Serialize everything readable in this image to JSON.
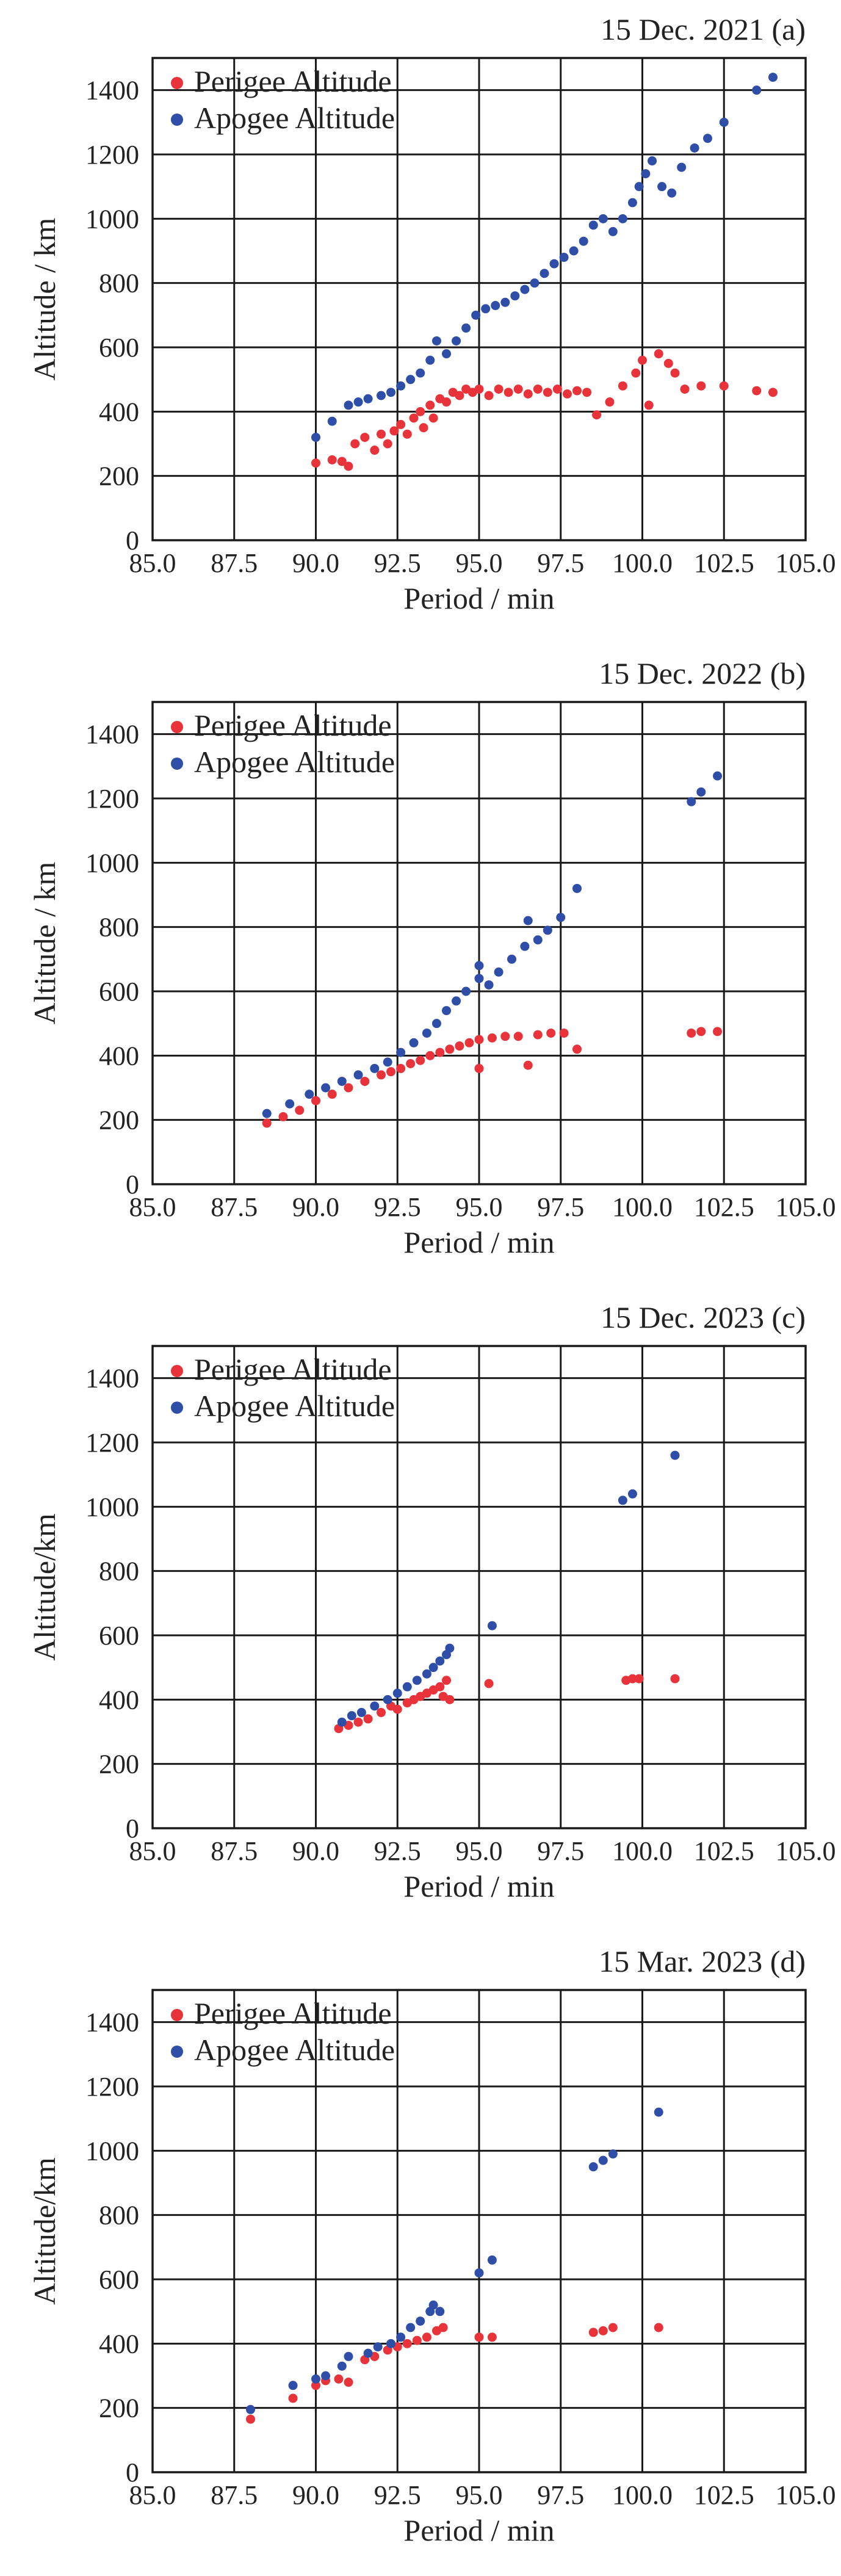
{
  "chart_data": [
    {
      "type": "scatter",
      "title": "15 Dec. 2021 (a)",
      "xlabel": "Period / min",
      "ylabel": "Altitude / km",
      "xlim": [
        85.0,
        105.0
      ],
      "ylim": [
        0,
        1500
      ],
      "xticks": [
        "85.0",
        "87.5",
        "90.0",
        "92.5",
        "95.0",
        "97.5",
        "100.0",
        "102.5",
        "105.0"
      ],
      "yticks": [
        "0",
        "200",
        "400",
        "600",
        "800",
        "1000",
        "1200",
        "1400"
      ],
      "grid": true,
      "legend": "top-left",
      "series": [
        {
          "name": "Perigee Altitude",
          "color": "#e8333b",
          "points": [
            [
              90.0,
              240
            ],
            [
              90.5,
              250
            ],
            [
              90.8,
              245
            ],
            [
              91.0,
              230
            ],
            [
              91.2,
              300
            ],
            [
              91.5,
              320
            ],
            [
              91.8,
              280
            ],
            [
              92.0,
              330
            ],
            [
              92.2,
              300
            ],
            [
              92.4,
              340
            ],
            [
              92.6,
              360
            ],
            [
              92.8,
              330
            ],
            [
              93.0,
              380
            ],
            [
              93.2,
              400
            ],
            [
              93.3,
              350
            ],
            [
              93.5,
              420
            ],
            [
              93.6,
              380
            ],
            [
              93.8,
              440
            ],
            [
              94.0,
              430
            ],
            [
              94.2,
              460
            ],
            [
              94.4,
              450
            ],
            [
              94.6,
              470
            ],
            [
              94.8,
              460
            ],
            [
              95.0,
              470
            ],
            [
              95.3,
              450
            ],
            [
              95.6,
              470
            ],
            [
              95.9,
              460
            ],
            [
              96.2,
              470
            ],
            [
              96.5,
              455
            ],
            [
              96.8,
              470
            ],
            [
              97.1,
              460
            ],
            [
              97.4,
              470
            ],
            [
              97.7,
              455
            ],
            [
              98.0,
              465
            ],
            [
              98.3,
              460
            ],
            [
              98.6,
              390
            ],
            [
              99.0,
              430
            ],
            [
              99.4,
              480
            ],
            [
              99.8,
              520
            ],
            [
              100.0,
              560
            ],
            [
              100.2,
              420
            ],
            [
              100.5,
              580
            ],
            [
              100.8,
              550
            ],
            [
              101.0,
              520
            ],
            [
              101.3,
              470
            ],
            [
              101.8,
              480
            ],
            [
              102.5,
              480
            ],
            [
              103.5,
              465
            ],
            [
              104.0,
              460
            ]
          ]
        },
        {
          "name": "Apogee Altitude",
          "color": "#2f4ea8",
          "points": [
            [
              90.0,
              320
            ],
            [
              90.5,
              370
            ],
            [
              91.0,
              420
            ],
            [
              91.3,
              430
            ],
            [
              91.6,
              440
            ],
            [
              92.0,
              450
            ],
            [
              92.3,
              460
            ],
            [
              92.6,
              480
            ],
            [
              92.9,
              500
            ],
            [
              93.2,
              520
            ],
            [
              93.5,
              560
            ],
            [
              93.7,
              620
            ],
            [
              94.0,
              580
            ],
            [
              94.3,
              620
            ],
            [
              94.6,
              660
            ],
            [
              94.9,
              700
            ],
            [
              95.2,
              720
            ],
            [
              95.5,
              730
            ],
            [
              95.8,
              740
            ],
            [
              96.1,
              760
            ],
            [
              96.4,
              780
            ],
            [
              96.7,
              800
            ],
            [
              97.0,
              830
            ],
            [
              97.3,
              860
            ],
            [
              97.6,
              880
            ],
            [
              97.9,
              900
            ],
            [
              98.2,
              930
            ],
            [
              98.5,
              980
            ],
            [
              98.8,
              1000
            ],
            [
              99.1,
              960
            ],
            [
              99.4,
              1000
            ],
            [
              99.7,
              1050
            ],
            [
              99.9,
              1100
            ],
            [
              100.1,
              1140
            ],
            [
              100.3,
              1180
            ],
            [
              100.6,
              1100
            ],
            [
              100.9,
              1080
            ],
            [
              101.2,
              1160
            ],
            [
              101.6,
              1220
            ],
            [
              102.0,
              1250
            ],
            [
              102.5,
              1300
            ],
            [
              103.5,
              1400
            ],
            [
              104.0,
              1440
            ]
          ]
        }
      ]
    },
    {
      "type": "scatter",
      "title": "15  Dec. 2022 (b)",
      "xlabel": "Period / min",
      "ylabel": "Altitude / km",
      "xlim": [
        85.0,
        105.0
      ],
      "ylim": [
        0,
        1500
      ],
      "xticks": [
        "85.0",
        "87.5",
        "90.0",
        "92.5",
        "95.0",
        "97.5",
        "100.0",
        "102.5",
        "105.0"
      ],
      "yticks": [
        "0",
        "200",
        "400",
        "600",
        "800",
        "1000",
        "1200",
        "1400"
      ],
      "grid": true,
      "legend": "top-left",
      "series": [
        {
          "name": "Perigee Altitude",
          "color": "#e8333b",
          "points": [
            [
              88.5,
              190
            ],
            [
              89.0,
              210
            ],
            [
              89.5,
              230
            ],
            [
              90.0,
              260
            ],
            [
              90.5,
              280
            ],
            [
              91.0,
              300
            ],
            [
              91.5,
              320
            ],
            [
              92.0,
              340
            ],
            [
              92.3,
              350
            ],
            [
              92.6,
              360
            ],
            [
              92.9,
              375
            ],
            [
              93.2,
              385
            ],
            [
              93.5,
              400
            ],
            [
              93.8,
              410
            ],
            [
              94.1,
              420
            ],
            [
              94.4,
              430
            ],
            [
              94.7,
              440
            ],
            [
              95.0,
              450
            ],
            [
              95.0,
              360
            ],
            [
              95.4,
              455
            ],
            [
              95.8,
              460
            ],
            [
              96.2,
              460
            ],
            [
              96.5,
              370
            ],
            [
              96.8,
              465
            ],
            [
              97.2,
              470
            ],
            [
              97.6,
              470
            ],
            [
              98.0,
              420
            ],
            [
              101.5,
              470
            ],
            [
              101.8,
              475
            ],
            [
              102.3,
              475
            ]
          ]
        },
        {
          "name": "Apogee Altitude",
          "color": "#2f4ea8",
          "points": [
            [
              88.5,
              220
            ],
            [
              89.2,
              250
            ],
            [
              89.8,
              280
            ],
            [
              90.3,
              300
            ],
            [
              90.8,
              320
            ],
            [
              91.3,
              340
            ],
            [
              91.8,
              360
            ],
            [
              92.2,
              380
            ],
            [
              92.6,
              410
            ],
            [
              93.0,
              440
            ],
            [
              93.4,
              470
            ],
            [
              93.7,
              500
            ],
            [
              94.0,
              540
            ],
            [
              94.3,
              570
            ],
            [
              94.6,
              600
            ],
            [
              95.0,
              640
            ],
            [
              95.0,
              680
            ],
            [
              95.3,
              620
            ],
            [
              95.6,
              660
            ],
            [
              96.0,
              700
            ],
            [
              96.4,
              740
            ],
            [
              96.5,
              820
            ],
            [
              96.8,
              760
            ],
            [
              97.1,
              790
            ],
            [
              97.5,
              830
            ],
            [
              98.0,
              920
            ],
            [
              101.5,
              1190
            ],
            [
              101.8,
              1220
            ],
            [
              102.3,
              1270
            ]
          ]
        }
      ]
    },
    {
      "type": "scatter",
      "title": "15  Dec. 2023 (c)",
      "xlabel": "Period / min",
      "ylabel": "Altitude/km",
      "xlim": [
        85.0,
        105.0
      ],
      "ylim": [
        0,
        1500
      ],
      "xticks": [
        "85.0",
        "87.5",
        "90.0",
        "92.5",
        "95.0",
        "97.5",
        "100.0",
        "102.5",
        "105.0"
      ],
      "yticks": [
        "0",
        "200",
        "400",
        "600",
        "800",
        "1000",
        "1200",
        "1400"
      ],
      "grid": true,
      "legend": "top-left",
      "series": [
        {
          "name": "Perigee Altitude",
          "color": "#e8333b",
          "points": [
            [
              90.7,
              310
            ],
            [
              91.0,
              320
            ],
            [
              91.3,
              330
            ],
            [
              91.6,
              340
            ],
            [
              92.0,
              360
            ],
            [
              92.3,
              380
            ],
            [
              92.5,
              370
            ],
            [
              92.8,
              390
            ],
            [
              93.0,
              400
            ],
            [
              93.2,
              410
            ],
            [
              93.4,
              420
            ],
            [
              93.6,
              430
            ],
            [
              93.8,
              440
            ],
            [
              93.9,
              410
            ],
            [
              94.0,
              460
            ],
            [
              94.1,
              400
            ],
            [
              95.3,
              450
            ],
            [
              99.5,
              460
            ],
            [
              99.7,
              465
            ],
            [
              99.9,
              465
            ],
            [
              101.0,
              465
            ]
          ]
        },
        {
          "name": "Apogee Altitude",
          "color": "#2f4ea8",
          "points": [
            [
              90.8,
              330
            ],
            [
              91.1,
              350
            ],
            [
              91.4,
              360
            ],
            [
              91.8,
              380
            ],
            [
              92.2,
              400
            ],
            [
              92.5,
              420
            ],
            [
              92.8,
              440
            ],
            [
              93.1,
              460
            ],
            [
              93.4,
              480
            ],
            [
              93.6,
              500
            ],
            [
              93.8,
              520
            ],
            [
              94.0,
              540
            ],
            [
              94.1,
              560
            ],
            [
              95.4,
              630
            ],
            [
              99.4,
              1020
            ],
            [
              99.7,
              1040
            ],
            [
              101.0,
              1160
            ]
          ]
        }
      ]
    },
    {
      "type": "scatter",
      "title": "15 Mar. 2023 (d)",
      "xlabel": "Period / min",
      "ylabel": "Altitude/km",
      "xlim": [
        85.0,
        105.0
      ],
      "ylim": [
        0,
        1500
      ],
      "xticks": [
        "85.0",
        "87.5",
        "90.0",
        "92.5",
        "95.0",
        "97.5",
        "100.0",
        "102.5",
        "105.0"
      ],
      "yticks": [
        "0",
        "200",
        "400",
        "600",
        "800",
        "1000",
        "1200",
        "1400"
      ],
      "grid": true,
      "legend": "top-left",
      "series": [
        {
          "name": "Perigee Altitude",
          "color": "#e8333b",
          "points": [
            [
              88.0,
              165
            ],
            [
              89.3,
              230
            ],
            [
              90.0,
              270
            ],
            [
              90.3,
              285
            ],
            [
              90.7,
              290
            ],
            [
              91.0,
              280
            ],
            [
              91.5,
              350
            ],
            [
              91.8,
              360
            ],
            [
              92.2,
              380
            ],
            [
              92.5,
              390
            ],
            [
              92.8,
              400
            ],
            [
              93.1,
              410
            ],
            [
              93.4,
              420
            ],
            [
              93.7,
              440
            ],
            [
              93.9,
              450
            ],
            [
              95.0,
              420
            ],
            [
              95.4,
              420
            ],
            [
              98.5,
              435
            ],
            [
              98.8,
              440
            ],
            [
              99.1,
              450
            ],
            [
              100.5,
              450
            ]
          ]
        },
        {
          "name": "Apogee Altitude",
          "color": "#2f4ea8",
          "points": [
            [
              88.0,
              195
            ],
            [
              89.3,
              270
            ],
            [
              90.0,
              290
            ],
            [
              90.3,
              300
            ],
            [
              90.8,
              330
            ],
            [
              91.0,
              360
            ],
            [
              91.6,
              370
            ],
            [
              91.9,
              390
            ],
            [
              92.3,
              400
            ],
            [
              92.6,
              420
            ],
            [
              92.9,
              450
            ],
            [
              93.2,
              470
            ],
            [
              93.5,
              500
            ],
            [
              93.8,
              500
            ],
            [
              93.6,
              520
            ],
            [
              95.0,
              620
            ],
            [
              95.4,
              660
            ],
            [
              98.5,
              950
            ],
            [
              98.8,
              970
            ],
            [
              99.1,
              990
            ],
            [
              100.5,
              1120
            ]
          ]
        }
      ]
    }
  ]
}
